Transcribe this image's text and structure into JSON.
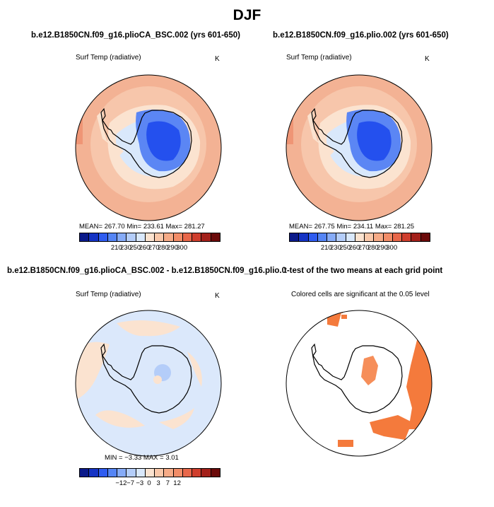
{
  "title": "DJF",
  "panels": [
    {
      "title": "b.e12.B1850CN.f09_g16.plioCA_BSC.002 (yrs 601-650)",
      "variable": "Surf Temp (radiative)",
      "units": "K",
      "stats": "MEAN= 267.70   Min= 233.61   Max= 281.27"
    },
    {
      "title": "b.e12.B1850CN.f09_g16.plio.002 (yrs 601-650)",
      "variable": "Surf Temp (radiative)",
      "units": "K",
      "stats": "MEAN= 267.75   Min= 234.11   Max= 281.25"
    },
    {
      "title": "b.e12.B1850CN.f09_g16.plioCA_BSC.002 - b.e12.B1850CN.f09_g16.plio.002",
      "variable": "Surf Temp (radiative)",
      "units": "K",
      "stats": "MIN =   −3.33  MAX =    3.01"
    },
    {
      "title": "t-test of the two means at each grid point",
      "variable": "Colored cells are significant at the 0.05 level",
      "units": "",
      "stats": ""
    }
  ],
  "chart_data": [
    {
      "type": "heatmap",
      "projection": "south-polar-stereographic",
      "title": "b.e12.B1850CN.f09_g16.plioCA_BSC.002 (yrs 601-650)",
      "variable": "Surf Temp (radiative)",
      "units": "K",
      "mean": 267.7,
      "min": 233.61,
      "max": 281.27,
      "colorbar_ticks": [
        "210",
        "230",
        "250",
        "260",
        "270",
        "280",
        "290",
        "300"
      ],
      "colorbar_colors": [
        "#0b1a8a",
        "#1533c4",
        "#2f5cf0",
        "#5585f5",
        "#86abf7",
        "#b4cdf9",
        "#d9e8fb",
        "#fbe3d0",
        "#f9c8aa",
        "#f6ab87",
        "#f28d68",
        "#e8674a",
        "#cf3e2d",
        "#a3201a",
        "#6b0a0a"
      ]
    },
    {
      "type": "heatmap",
      "projection": "south-polar-stereographic",
      "title": "b.e12.B1850CN.f09_g16.plio.002 (yrs 601-650)",
      "variable": "Surf Temp (radiative)",
      "units": "K",
      "mean": 267.75,
      "min": 234.11,
      "max": 281.25,
      "colorbar_ticks": [
        "210",
        "230",
        "250",
        "260",
        "270",
        "280",
        "290",
        "300"
      ],
      "colorbar_colors": [
        "#0b1a8a",
        "#1533c4",
        "#2f5cf0",
        "#5585f5",
        "#86abf7",
        "#b4cdf9",
        "#d9e8fb",
        "#fbe3d0",
        "#f9c8aa",
        "#f6ab87",
        "#f28d68",
        "#e8674a",
        "#cf3e2d",
        "#a3201a",
        "#6b0a0a"
      ]
    },
    {
      "type": "heatmap",
      "projection": "south-polar-stereographic",
      "title": "b.e12.B1850CN.f09_g16.plioCA_BSC.002 - b.e12.B1850CN.f09_g16.plio.002",
      "variable": "Surf Temp (radiative)",
      "units": "K",
      "min": -3.33,
      "max": 3.01,
      "colorbar_ticks": [
        "−12",
        "−7",
        "−3",
        "0",
        "3",
        "7",
        "12"
      ],
      "colorbar_colors": [
        "#0b1a8a",
        "#1533c4",
        "#2f5cf0",
        "#5585f5",
        "#86abf7",
        "#b4cdf9",
        "#d9e8fb",
        "#fbe3d0",
        "#f9c8aa",
        "#f6ab87",
        "#f28d68",
        "#e8674a",
        "#cf3e2d",
        "#a3201a",
        "#6b0a0a"
      ]
    },
    {
      "type": "heatmap",
      "projection": "south-polar-stereographic",
      "title": "t-test of the two means at each grid point",
      "note": "Colored cells are significant at the 0.05 level",
      "significance_level": 0.05,
      "significant_color": "#f47a3c"
    }
  ]
}
